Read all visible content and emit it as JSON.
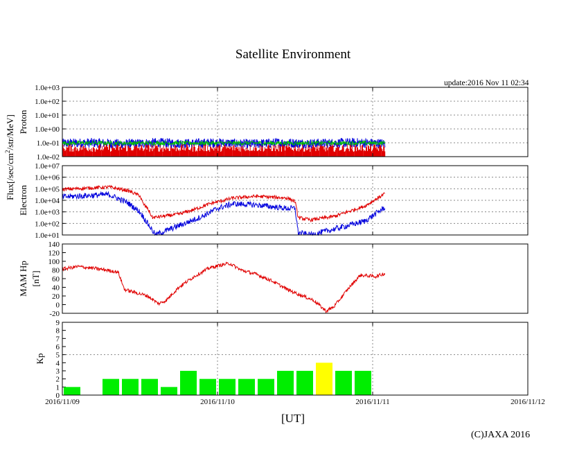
{
  "header": {
    "title": "Satellite Environment",
    "update": "update:2016 Nov 11 02:34"
  },
  "footer": {
    "xlabel": "[UT]",
    "copyright": "(C)JAXA 2016"
  },
  "colors": {
    "red": "#e00000",
    "blue": "#0000dd",
    "green": "#00c000",
    "teal": "#00b0b0",
    "kp_green": "#00ee00",
    "kp_yellow": "#ffff00",
    "grid": "#888888"
  },
  "chart_data": [
    {
      "panel": "proton",
      "type": "line",
      "scale": "log",
      "ylim_exp": [
        -2,
        3
      ],
      "tick_labels": [
        "1.0e-02",
        "1.0e-01",
        "1.0e+00",
        "1.0e+01",
        "1.0e+02",
        "1.0e+03"
      ],
      "ylabel": "Proton",
      "flux_label_main": "Flux[/sec/cm",
      "flux_label_sup": "2",
      "flux_label_end": "/str/MeV]",
      "series": [
        {
          "name": "proton-blue",
          "color": "blue",
          "x": [
            0,
            0.2,
            0.4,
            0.6,
            0.8,
            1.0,
            1.2,
            1.4,
            1.6,
            1.9,
            2.08
          ],
          "y_exp": [
            -1.05,
            -1.0,
            -1.1,
            -1.0,
            -1.05,
            -1.0,
            -1.1,
            -1.0,
            -1.05,
            -1.0,
            -1.05
          ],
          "noise": 0.35
        },
        {
          "name": "proton-green",
          "color": "green",
          "x": [
            0,
            0.5,
            1.0,
            1.5,
            2.08
          ],
          "y_exp": [
            -1.02,
            -1.02,
            -1.02,
            -1.02,
            -1.02
          ],
          "noise": 0.15
        },
        {
          "name": "proton-red",
          "color": "red",
          "x": [
            0,
            2.08
          ],
          "y_exp": [
            -2.0,
            -2.0
          ],
          "spikes": true
        }
      ]
    },
    {
      "panel": "electron",
      "type": "line",
      "scale": "log",
      "ylim_exp": [
        1,
        7
      ],
      "tick_labels": [
        "1.0e+01",
        "1.0e+02",
        "1.0e+03",
        "1.0e+04",
        "1.0e+05",
        "1.0e+06",
        "1.0e+07"
      ],
      "ylabel": "Electron",
      "series": [
        {
          "name": "electron-red",
          "color": "red",
          "x": [
            0,
            0.15,
            0.3,
            0.42,
            0.5,
            0.52,
            0.55,
            0.58,
            0.75,
            0.85,
            0.95,
            1.1,
            1.25,
            1.45,
            1.5,
            1.52,
            1.6,
            1.75,
            1.95,
            2.08
          ],
          "y_exp": [
            4.95,
            5.05,
            5.15,
            4.85,
            4.4,
            3.7,
            3.3,
            2.5,
            2.8,
            3.2,
            3.7,
            4.2,
            4.35,
            4.2,
            3.9,
            2.5,
            2.3,
            2.6,
            3.5,
            4.6
          ],
          "noise": 0.15
        },
        {
          "name": "electron-blue",
          "color": "blue",
          "x": [
            0,
            0.15,
            0.3,
            0.42,
            0.5,
            0.55,
            0.6,
            0.75,
            0.9,
            1.0,
            1.1,
            1.25,
            1.45,
            1.5,
            1.52,
            1.6,
            1.75,
            1.95,
            2.08
          ],
          "y_exp": [
            4.3,
            4.4,
            4.5,
            3.8,
            3.0,
            2.0,
            1.0,
            1.8,
            2.6,
            3.3,
            3.7,
            3.6,
            3.3,
            3.3,
            1.2,
            1.0,
            1.5,
            2.2,
            3.4
          ],
          "noise": 0.25,
          "floor": 1.0
        }
      ]
    },
    {
      "panel": "hp",
      "type": "line",
      "scale": "linear",
      "ylim": [
        -20,
        140
      ],
      "ticks": [
        -20,
        0,
        20,
        40,
        60,
        80,
        100,
        120,
        140
      ],
      "ylabel_top": "MAM Hp",
      "ylabel_bottom": "[nT]",
      "series": [
        {
          "name": "hp-red",
          "color": "red",
          "x": [
            0,
            0.1,
            0.2,
            0.28,
            0.36,
            0.4,
            0.45,
            0.55,
            0.62,
            0.67,
            0.75,
            0.85,
            0.95,
            1.03,
            1.08,
            1.15,
            1.25,
            1.35,
            1.45,
            1.55,
            1.62,
            1.7,
            1.75,
            1.85,
            1.92,
            2.02,
            2.08
          ],
          "y": [
            82,
            88,
            84,
            80,
            75,
            35,
            30,
            20,
            2,
            10,
            40,
            65,
            85,
            92,
            95,
            80,
            70,
            55,
            35,
            20,
            10,
            -15,
            -5,
            40,
            68,
            65,
            72
          ],
          "noise": 4
        }
      ]
    },
    {
      "panel": "kp",
      "type": "bar",
      "ylim": [
        0,
        9
      ],
      "ticks": [
        0,
        1,
        2,
        3,
        4,
        5,
        6,
        7,
        8,
        9
      ],
      "ylabel": "Kp",
      "bar_width_h": 3,
      "bars": [
        {
          "t": 0,
          "v": 1,
          "color": "green"
        },
        {
          "t": 6,
          "v": 2,
          "color": "green"
        },
        {
          "t": 9,
          "v": 2,
          "color": "green"
        },
        {
          "t": 12,
          "v": 2,
          "color": "green"
        },
        {
          "t": 15,
          "v": 1,
          "color": "green"
        },
        {
          "t": 18,
          "v": 3,
          "color": "green"
        },
        {
          "t": 21,
          "v": 2,
          "color": "green"
        },
        {
          "t": 24,
          "v": 2,
          "color": "green"
        },
        {
          "t": 27,
          "v": 2,
          "color": "green"
        },
        {
          "t": 30,
          "v": 2,
          "color": "green"
        },
        {
          "t": 33,
          "v": 3,
          "color": "green"
        },
        {
          "t": 36,
          "v": 3,
          "color": "green"
        },
        {
          "t": 39,
          "v": 4,
          "color": "yellow"
        },
        {
          "t": 42,
          "v": 3,
          "color": "green"
        },
        {
          "t": 45,
          "v": 3,
          "color": "green"
        }
      ]
    }
  ],
  "x_axis": {
    "xlim_days": [
      0,
      3
    ],
    "tick_labels": [
      "2016/11/09",
      "2016/11/10",
      "2016/11/11",
      "2016/11/12"
    ]
  }
}
